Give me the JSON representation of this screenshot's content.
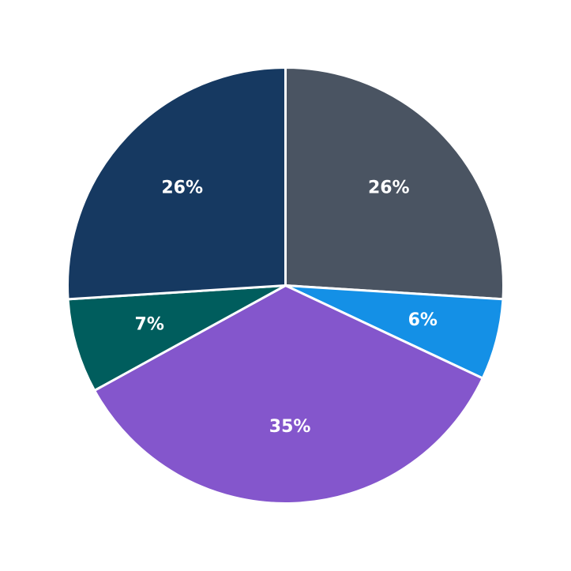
{
  "chart_data": {
    "type": "pie",
    "values": [
      26,
      6,
      35,
      7,
      26
    ],
    "value_labels": [
      "26%",
      "6%",
      "35%",
      "7%",
      "26%"
    ],
    "colors": [
      "#4a5462",
      "#1490e6",
      "#8456cc",
      "#005d5d",
      "#163961"
    ]
  }
}
